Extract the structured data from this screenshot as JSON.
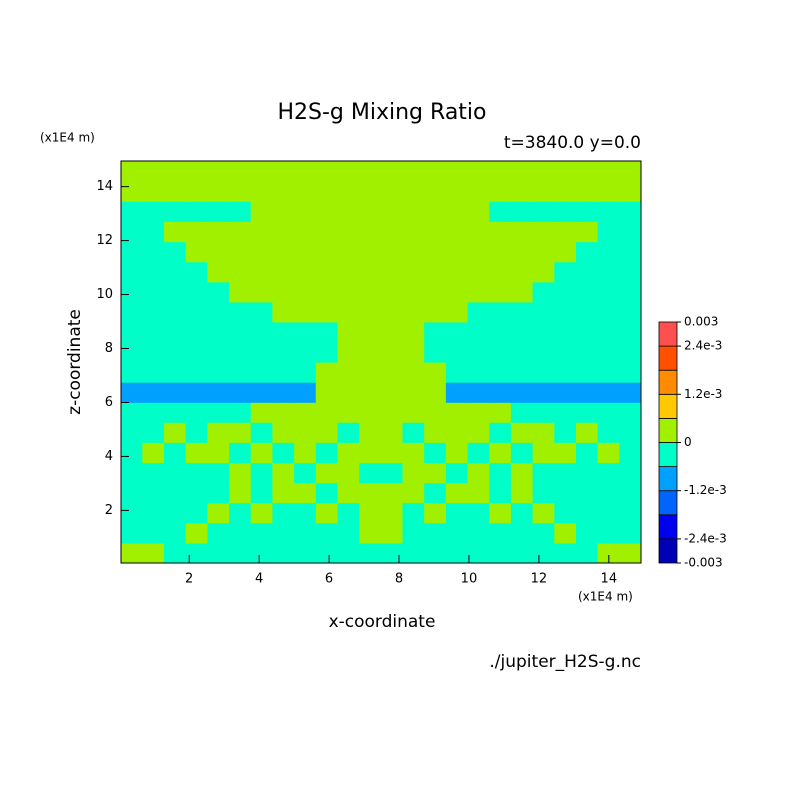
{
  "chart_data": {
    "type": "contour",
    "title": "H2S-g Mixing Ratio",
    "subtitle": "t=3840.0 y=0.0",
    "x_label": "x-coordinate",
    "y_label": "z-coordinate",
    "x_unit": "(x1E4 m)",
    "y_unit": "(x1E4 m)",
    "source": "./jupiter_H2S-g.nc",
    "xlim": [
      0.05,
      14.92
    ],
    "ylim": [
      0.05,
      14.95
    ],
    "xticks": [
      2,
      4,
      6,
      8,
      10,
      12,
      14
    ],
    "yticks": [
      2,
      4,
      6,
      8,
      10,
      12,
      14
    ],
    "x": [
      0.35,
      0.97,
      1.59,
      2.21,
      2.83,
      3.45,
      4.07,
      4.69,
      5.31,
      5.93,
      6.55,
      7.17,
      7.79,
      8.41,
      9.03,
      9.65,
      10.27,
      10.89,
      11.51,
      12.13,
      12.75,
      13.37,
      13.99,
      14.61
    ],
    "y": [
      0.42,
      1.17,
      1.92,
      2.66,
      3.4,
      4.15,
      4.9,
      5.64,
      6.38,
      7.13,
      7.87,
      8.62,
      9.36,
      10.1,
      10.85,
      11.59,
      12.34,
      13.09,
      13.83,
      14.58
    ],
    "z": [
      [
        0.0003,
        0.0003,
        -0.0003,
        -0.0003,
        -0.0003,
        -0.0003,
        -0.0003,
        -0.0003,
        -0.0003,
        -0.0003,
        -0.0003,
        -0.0003,
        -0.0003,
        -0.0003,
        -0.0003,
        -0.0003,
        -0.0003,
        -0.0003,
        -0.0003,
        -0.0003,
        -0.0003,
        -0.0003,
        0.0003,
        0.0003
      ],
      [
        -0.0003,
        -0.0003,
        -0.0003,
        0.0003,
        -0.0003,
        -0.0003,
        -0.0003,
        -0.0003,
        -0.0003,
        -0.0003,
        -0.0003,
        0.0003,
        0.0003,
        -0.0003,
        -0.0003,
        -0.0003,
        -0.0003,
        -0.0003,
        -0.0003,
        -0.0003,
        0.0003,
        -0.0003,
        -0.0003,
        -0.0003
      ],
      [
        -0.0003,
        -0.0003,
        -0.0003,
        -0.0003,
        0.0003,
        -0.0003,
        0.0003,
        -0.0003,
        -0.0003,
        0.0003,
        -0.0003,
        0.0003,
        0.0003,
        -0.0003,
        0.0003,
        -0.0003,
        -0.0003,
        0.0003,
        -0.0003,
        0.0003,
        -0.0003,
        -0.0003,
        -0.0003,
        -0.0003
      ],
      [
        -0.0003,
        -0.0003,
        -0.0003,
        -0.0003,
        -0.0003,
        0.0003,
        -0.0003,
        0.0003,
        0.0003,
        -0.0003,
        0.0003,
        0.0003,
        0.0003,
        0.0003,
        -0.0003,
        0.0003,
        0.0003,
        -0.0003,
        0.0003,
        -0.0003,
        -0.0003,
        -0.0003,
        -0.0003,
        -0.0003
      ],
      [
        -0.0003,
        -0.0003,
        -0.0003,
        -0.0003,
        -0.0003,
        0.0003,
        -0.0003,
        0.0003,
        -0.0003,
        0.0003,
        0.0003,
        -0.0003,
        -0.0003,
        0.0003,
        0.0003,
        -0.0003,
        0.0003,
        -0.0003,
        0.0003,
        -0.0003,
        -0.0003,
        -0.0003,
        -0.0003,
        -0.0003
      ],
      [
        -0.0003,
        0.0003,
        -0.0003,
        0.0003,
        0.0003,
        -0.0003,
        0.0003,
        -0.0003,
        0.0003,
        -0.0003,
        0.0003,
        0.0003,
        0.0003,
        0.0003,
        -0.0003,
        0.0003,
        -0.0003,
        0.0003,
        -0.0003,
        0.0003,
        0.0003,
        -0.0003,
        0.0003,
        -0.0003
      ],
      [
        -0.0003,
        -0.0003,
        0.0003,
        -0.0003,
        0.0003,
        0.0003,
        -0.0003,
        0.0003,
        0.0003,
        0.0003,
        -0.0003,
        0.0003,
        0.0003,
        -0.0003,
        0.0003,
        0.0003,
        0.0003,
        -0.0003,
        0.0003,
        0.0003,
        -0.0003,
        0.0003,
        -0.0003,
        -0.0003
      ],
      [
        -0.0003,
        -0.0003,
        -0.0003,
        -0.0003,
        -0.0003,
        -0.0003,
        0.0003,
        0.0003,
        0.0003,
        0.0003,
        0.0003,
        0.0003,
        0.0003,
        0.0003,
        0.0003,
        0.0003,
        0.0003,
        0.0003,
        -0.0003,
        -0.0003,
        -0.0003,
        -0.0003,
        -0.0003,
        -0.0003
      ],
      [
        -0.0009,
        -0.0009,
        -0.0009,
        -0.0009,
        -0.0009,
        -0.0009,
        -0.0009,
        -0.0009,
        -0.0009,
        0.0003,
        0.0003,
        0.0003,
        0.0003,
        0.0003,
        0.0003,
        -0.0009,
        -0.0009,
        -0.0009,
        -0.0009,
        -0.0009,
        -0.0009,
        -0.0009,
        -0.0009,
        -0.0009
      ],
      [
        -0.0003,
        -0.0003,
        -0.0003,
        -0.0003,
        -0.0003,
        -0.0003,
        -0.0003,
        -0.0003,
        -0.0003,
        0.0003,
        0.0003,
        0.0003,
        0.0003,
        0.0003,
        0.0003,
        -0.0003,
        -0.0003,
        -0.0003,
        -0.0003,
        -0.0003,
        -0.0003,
        -0.0003,
        -0.0003,
        -0.0003
      ],
      [
        -0.0003,
        -0.0003,
        -0.0003,
        -0.0003,
        -0.0003,
        -0.0003,
        -0.0003,
        -0.0003,
        -0.0003,
        -0.0003,
        0.0003,
        0.0003,
        0.0003,
        0.0003,
        -0.0003,
        -0.0003,
        -0.0003,
        -0.0003,
        -0.0003,
        -0.0003,
        -0.0003,
        -0.0003,
        -0.0003,
        -0.0003
      ],
      [
        -0.0003,
        -0.0003,
        -0.0003,
        -0.0003,
        -0.0003,
        -0.0003,
        -0.0003,
        -0.0003,
        -0.0003,
        -0.0003,
        0.0003,
        0.0003,
        0.0003,
        0.0003,
        -0.0003,
        -0.0003,
        -0.0003,
        -0.0003,
        -0.0003,
        -0.0003,
        -0.0003,
        -0.0003,
        -0.0003,
        -0.0003
      ],
      [
        -0.0003,
        -0.0003,
        -0.0003,
        -0.0003,
        -0.0003,
        -0.0003,
        -0.0003,
        0.0003,
        0.0003,
        0.0003,
        0.0003,
        0.0003,
        0.0003,
        0.0003,
        0.0003,
        0.0003,
        -0.0003,
        -0.0003,
        -0.0003,
        -0.0003,
        -0.0003,
        -0.0003,
        -0.0003,
        -0.0003
      ],
      [
        -0.0003,
        -0.0003,
        -0.0003,
        -0.0003,
        -0.0003,
        0.0003,
        0.0003,
        0.0003,
        0.0003,
        0.0003,
        0.0003,
        0.0003,
        0.0003,
        0.0003,
        0.0003,
        0.0003,
        0.0003,
        0.0003,
        0.0003,
        -0.0003,
        -0.0003,
        -0.0003,
        -0.0003,
        -0.0003
      ],
      [
        -0.0003,
        -0.0003,
        -0.0003,
        -0.0003,
        0.0003,
        0.0003,
        0.0003,
        0.0003,
        0.0003,
        0.0003,
        0.0003,
        0.0003,
        0.0003,
        0.0003,
        0.0003,
        0.0003,
        0.0003,
        0.0003,
        0.0003,
        0.0003,
        -0.0003,
        -0.0003,
        -0.0003,
        -0.0003
      ],
      [
        -0.0003,
        -0.0003,
        -0.0003,
        0.0003,
        0.0003,
        0.0003,
        0.0003,
        0.0003,
        0.0003,
        0.0003,
        0.0003,
        0.0003,
        0.0003,
        0.0003,
        0.0003,
        0.0003,
        0.0003,
        0.0003,
        0.0003,
        0.0003,
        0.0003,
        -0.0003,
        -0.0003,
        -0.0003
      ],
      [
        -0.0003,
        -0.0003,
        0.0003,
        0.0003,
        0.0003,
        0.0003,
        0.0003,
        0.0003,
        0.0003,
        0.0003,
        0.0003,
        0.0003,
        0.0003,
        0.0003,
        0.0003,
        0.0003,
        0.0003,
        0.0003,
        0.0003,
        0.0003,
        0.0003,
        0.0003,
        -0.0003,
        -0.0003
      ],
      [
        -0.0003,
        -0.0003,
        -0.0003,
        -0.0003,
        -0.0003,
        -0.0003,
        0.0003,
        0.0003,
        0.0003,
        0.0003,
        0.0003,
        0.0003,
        0.0003,
        0.0003,
        0.0003,
        0.0003,
        0.0003,
        -0.0003,
        -0.0003,
        -0.0003,
        -0.0003,
        -0.0003,
        -0.0003,
        -0.0003
      ],
      [
        0.0003,
        0.0003,
        0.0003,
        0.0003,
        0.0003,
        0.0003,
        0.0003,
        0.0003,
        0.0003,
        0.0003,
        0.0003,
        0.0003,
        0.0003,
        0.0003,
        0.0003,
        0.0003,
        0.0003,
        0.0003,
        0.0003,
        0.0003,
        0.0003,
        0.0003,
        0.0003,
        0.0003
      ],
      [
        0.0003,
        0.0003,
        0.0003,
        0.0003,
        0.0003,
        0.0003,
        0.0003,
        0.0003,
        0.0003,
        0.0003,
        0.0003,
        0.0003,
        0.0003,
        0.0003,
        0.0003,
        0.0003,
        0.0003,
        0.0003,
        0.0003,
        0.0003,
        0.0003,
        0.0003,
        0.0003,
        0.0003
      ]
    ],
    "levels": [
      -0.003,
      -0.0024,
      -0.0018,
      -0.0012,
      -0.0006,
      0,
      0.0006,
      0.0012,
      0.0018,
      0.0024,
      0.003
    ],
    "level_colors": [
      "#0000b4",
      "#0000f0",
      "#0064ff",
      "#00a0ff",
      "#00ffc8",
      "#a0f000",
      "#ffc800",
      "#ff8c00",
      "#ff5000",
      "#ff5050"
    ],
    "colorbar_lim": [
      -0.003,
      0.003
    ],
    "colorbar_ticks": [
      {
        "value": 0.003,
        "label": "0.003"
      },
      {
        "value": 0.0024,
        "label": "2.4e-3"
      },
      {
        "value": 0.0012,
        "label": "1.2e-3"
      },
      0,
      {
        "value": -0.0012,
        "label": "-1.2e-3"
      },
      {
        "value": -0.0024,
        "label": "-2.4e-3"
      },
      {
        "value": -0.003,
        "label": "-0.003"
      }
    ]
  }
}
